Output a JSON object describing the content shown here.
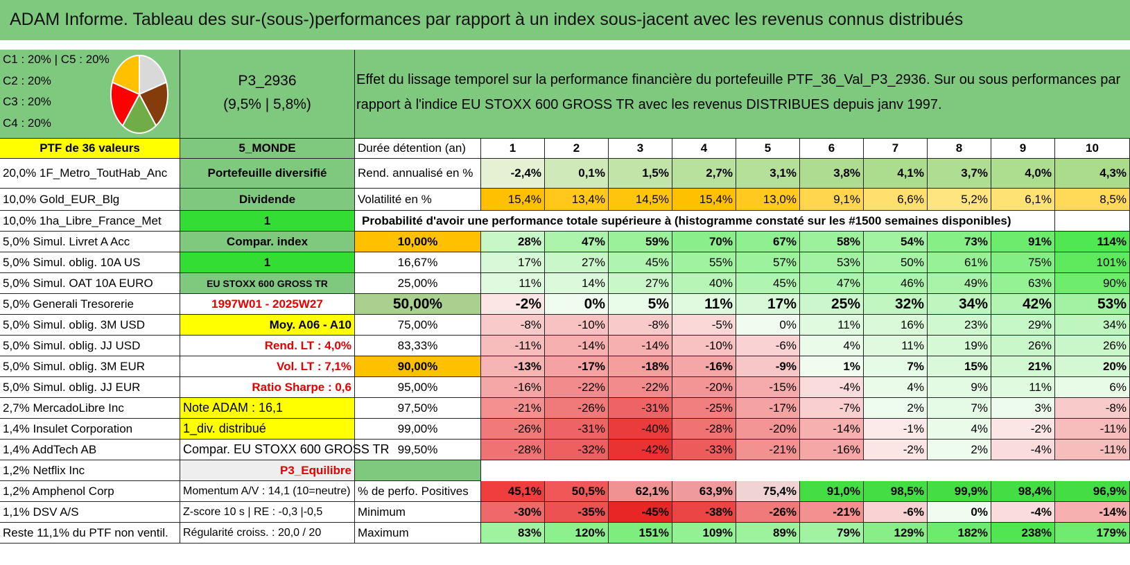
{
  "title": "ADAM Informe. Tableau des sur-(sous-)performances par rapport à un index sous-jacent avec les revenus connus distribués",
  "pie": {
    "labels": [
      "C1 : 20% | C5 : 20%",
      "C2 : 20%",
      "C3 : 20%",
      "C4 : 20%"
    ],
    "slices": [
      {
        "name": "C1",
        "value": 20,
        "color": "#d9d9d9"
      },
      {
        "name": "C2",
        "value": 20,
        "color": "#843c0c"
      },
      {
        "name": "C3",
        "value": 20,
        "color": "#70ad47"
      },
      {
        "name": "C4",
        "value": 20,
        "color": "#ff0000"
      },
      {
        "name": "C5",
        "value": 20,
        "color": "#ffc000"
      }
    ]
  },
  "portfolio": {
    "name": "P3_2936",
    "stats": "(9,5% | 5,8%)"
  },
  "description": {
    "line1": "Effet du lissage temporel sur la performance financière du portefeuille PTF_36_Val_P3_2936. Sur ou sous performances par",
    "line2": "rapport à l'indice EU STOXX 600 GROSS TR avec les revenus DISTRIBUES depuis janv 1997."
  },
  "col1": {
    "header": "PTF de 36 valeurs",
    "items": [
      "20,0% 1F_Metro_ToutHab_Anc",
      "10,0% Gold_EUR_Blg",
      "10,0% 1ha_Libre_France_Met",
      "5,0% Simul. Livret A Acc",
      "5,0% Simul. oblig. 10A US",
      "5,0% Simul. OAT 10A EURO",
      "5,0% Generali Tresorerie",
      "5,0% Simul. oblig. 3M USD",
      "5,0% Simul. oblig. JJ USD",
      "5,0% Simul. oblig. 3M EUR",
      "5,0% Simul. oblig. JJ EUR",
      "2,7% MercadoLibre Inc",
      "1,4% Insulet Corporation",
      "1,4% AddTech AB",
      "1,2% Netflix Inc",
      "1,2% Amphenol Corp",
      "1,1% DSV A/S",
      "Reste 11,1% du PTF non ventil."
    ]
  },
  "col2": {
    "header": "5_MONDE",
    "items": [
      "Portefeuille diversifié",
      "Dividende",
      "1",
      "Compar. index",
      "1",
      "EU STOXX 600 GROSS TR",
      "1997W01 - 2025W27",
      "Moy. A06 - A10",
      "Rend. LT : 4,0%",
      "Vol. LT : 7,1%",
      "Ratio Sharpe : 0,6",
      "Note ADAM : 16,1",
      "1_div. distribué",
      "Compar. EU STOXX 600 GROSS TR",
      "P3_Equilibre",
      "Momentum A/V : 14,1 (10=neutre)",
      "Z-score 10 s | RE : -0,3 |-0,5",
      "Régularité croiss. : 20,0 / 20"
    ]
  },
  "table": {
    "duration_label": "Durée détention (an)",
    "years": [
      "1",
      "2",
      "3",
      "4",
      "5",
      "6",
      "7",
      "8",
      "9",
      "10"
    ],
    "rend_label": "Rend. annualisé en %",
    "rend": [
      "-2,4%",
      "0,1%",
      "1,5%",
      "2,7%",
      "3,1%",
      "3,8%",
      "4,1%",
      "3,7%",
      "4,0%",
      "4,3%"
    ],
    "vol_label": "Volatilité en %",
    "vol": [
      "15,4%",
      "13,4%",
      "14,5%",
      "15,4%",
      "13,0%",
      "9,1%",
      "6,6%",
      "5,2%",
      "6,1%",
      "8,5%"
    ],
    "prob_title": "Probabilité d'avoir une performance totale supérieure à (histogramme constaté sur les #1500 semaines disponibles)",
    "prob_rows": [
      {
        "p": "10,00%",
        "v": [
          "28%",
          "47%",
          "59%",
          "70%",
          "67%",
          "58%",
          "54%",
          "73%",
          "91%",
          "114%"
        ]
      },
      {
        "p": "16,67%",
        "v": [
          "17%",
          "27%",
          "45%",
          "55%",
          "57%",
          "53%",
          "50%",
          "61%",
          "75%",
          "101%"
        ]
      },
      {
        "p": "25,00%",
        "v": [
          "11%",
          "14%",
          "27%",
          "40%",
          "45%",
          "47%",
          "46%",
          "49%",
          "63%",
          "90%"
        ]
      },
      {
        "p": "50,00%",
        "v": [
          "-2%",
          "0%",
          "5%",
          "11%",
          "17%",
          "25%",
          "32%",
          "34%",
          "42%",
          "53%"
        ]
      },
      {
        "p": "75,00%",
        "v": [
          "-8%",
          "-10%",
          "-8%",
          "-5%",
          "0%",
          "11%",
          "16%",
          "23%",
          "29%",
          "34%"
        ]
      },
      {
        "p": "83,33%",
        "v": [
          "-11%",
          "-14%",
          "-14%",
          "-10%",
          "-6%",
          "4%",
          "11%",
          "19%",
          "26%",
          "26%"
        ]
      },
      {
        "p": "90,00%",
        "v": [
          "-13%",
          "-17%",
          "-18%",
          "-16%",
          "-9%",
          "1%",
          "7%",
          "15%",
          "21%",
          "20%"
        ]
      },
      {
        "p": "95,00%",
        "v": [
          "-16%",
          "-22%",
          "-22%",
          "-20%",
          "-15%",
          "-4%",
          "4%",
          "9%",
          "11%",
          "6%"
        ]
      },
      {
        "p": "97,50%",
        "v": [
          "-21%",
          "-26%",
          "-31%",
          "-25%",
          "-17%",
          "-7%",
          "2%",
          "7%",
          "3%",
          "-8%"
        ]
      },
      {
        "p": "99,00%",
        "v": [
          "-26%",
          "-31%",
          "-40%",
          "-28%",
          "-20%",
          "-14%",
          "-1%",
          "4%",
          "-2%",
          "-11%"
        ]
      },
      {
        "p": "99,50%",
        "v": [
          "-28%",
          "-32%",
          "-42%",
          "-33%",
          "-21%",
          "-16%",
          "-2%",
          "2%",
          "-4%",
          "-11%"
        ]
      }
    ],
    "pos_label": "% de perfo. Positives",
    "pos": [
      "45,1%",
      "50,5%",
      "62,1%",
      "63,9%",
      "75,4%",
      "91,0%",
      "98,5%",
      "99,9%",
      "98,4%",
      "96,9%"
    ],
    "min_label": "Minimum",
    "min": [
      "-30%",
      "-35%",
      "-45%",
      "-38%",
      "-26%",
      "-21%",
      "-6%",
      "0%",
      "-4%",
      "-14%"
    ],
    "max_label": "Maximum",
    "max": [
      "83%",
      "120%",
      "151%",
      "109%",
      "89%",
      "79%",
      "129%",
      "182%",
      "238%",
      "179%"
    ]
  },
  "colors": {
    "header_green": "#7fc97f",
    "highlight_yellow": "#ffff00",
    "highlight_orange": "#ffc000",
    "bright_green": "#33dd33",
    "red_text": "#e60000"
  }
}
